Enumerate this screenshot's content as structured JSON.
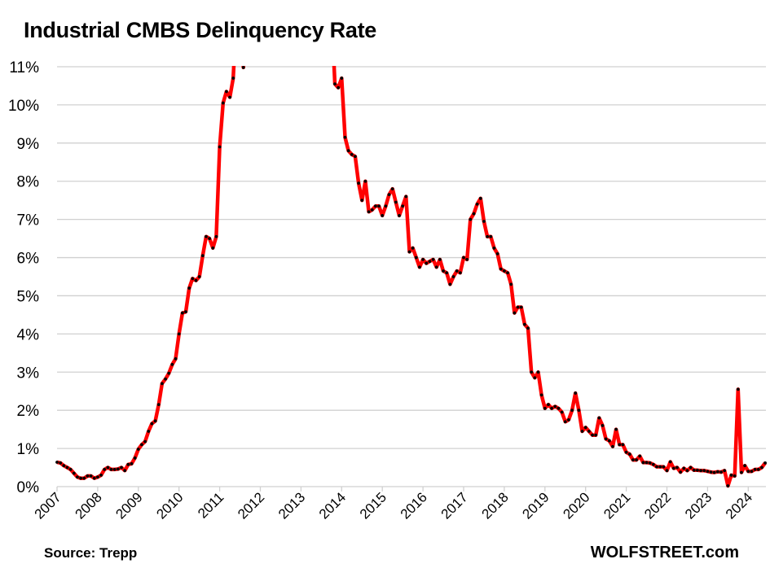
{
  "chart_data": {
    "type": "line",
    "title": "Industrial CMBS Delinquency Rate",
    "xlabel": "",
    "ylabel": "",
    "ylim": [
      0,
      11
    ],
    "xlim": [
      "2007-01",
      "2024-06"
    ],
    "y_ticks": [
      "0%",
      "1%",
      "2%",
      "3%",
      "4%",
      "5%",
      "6%",
      "7%",
      "8%",
      "9%",
      "10%",
      "11%"
    ],
    "x_ticks": [
      "2007",
      "2008",
      "2009",
      "2010",
      "2011",
      "2012",
      "2013",
      "2014",
      "2015",
      "2016",
      "2017",
      "2018",
      "2019",
      "2020",
      "2021",
      "2022",
      "2023",
      "2024"
    ],
    "grid": "horizontal",
    "frequency": "monthly",
    "unit": "%",
    "line_color": "#ff0000",
    "marker_color": "#000000",
    "note": "",
    "series": [
      {
        "values_by_year": {
          "2007": [
            0.64,
            0.62,
            0.55,
            0.5,
            0.45,
            0.35,
            0.25,
            0.22,
            0.22,
            0.28,
            0.28,
            0.22
          ],
          "2008": [
            0.25,
            0.3,
            0.45,
            0.5,
            0.45,
            0.45,
            0.46,
            0.5,
            0.42,
            0.58,
            0.6,
            0.75
          ],
          "2009": [
            0.98,
            1.1,
            1.18,
            1.45,
            1.65,
            1.72,
            2.15,
            2.7,
            2.82,
            2.97,
            3.2,
            3.35
          ],
          "2010": [
            4.0,
            4.55,
            4.58,
            5.2,
            5.45,
            5.4,
            5.5,
            6.05,
            6.55,
            6.5,
            6.25,
            6.55
          ],
          "2011": [
            8.9,
            10.05,
            10.35,
            10.2,
            10.7,
            null,
            null,
            10.98,
            null,
            null,
            null,
            null
          ],
          "2012": [
            null,
            null,
            null,
            null,
            null,
            null,
            null,
            null,
            null,
            null,
            null,
            null
          ],
          "2013": [
            null,
            null,
            null,
            null,
            null,
            null,
            null,
            null,
            null,
            null,
            10.55,
            10.45
          ],
          "2014": [
            10.7,
            9.15,
            8.8,
            8.7,
            8.65,
            7.95,
            7.5,
            8.0,
            7.2,
            7.25,
            7.35,
            7.35
          ],
          "2015": [
            7.1,
            7.35,
            7.65,
            7.8,
            7.45,
            7.1,
            7.35,
            7.6,
            6.15,
            6.25,
            6.0,
            5.75
          ],
          "2016": [
            5.95,
            5.85,
            5.9,
            5.95,
            5.75,
            5.95,
            5.65,
            5.6,
            5.3,
            5.5,
            5.65,
            5.6
          ],
          "2017": [
            6.0,
            5.95,
            7.0,
            7.15,
            7.4,
            7.55,
            6.95,
            6.55,
            6.55,
            6.25,
            6.1,
            5.7
          ],
          "2018": [
            5.65,
            5.6,
            5.3,
            4.55,
            4.7,
            4.7,
            4.25,
            4.15,
            3.0,
            2.85,
            3.0,
            2.4
          ],
          "2019": [
            2.05,
            2.15,
            2.05,
            2.1,
            2.05,
            1.95,
            1.7,
            1.75,
            2.0,
            2.45,
            2.0,
            1.45
          ],
          "2020": [
            1.55,
            1.45,
            1.35,
            1.35,
            1.8,
            1.6,
            1.25,
            1.2,
            1.05,
            1.5,
            1.1,
            1.1
          ],
          "2021": [
            0.9,
            0.85,
            0.7,
            0.7,
            0.8,
            0.63,
            0.63,
            0.62,
            0.58,
            0.52,
            0.52,
            0.52
          ],
          "2022": [
            0.42,
            0.65,
            0.48,
            0.5,
            0.38,
            0.48,
            0.42,
            0.5,
            0.43,
            0.43,
            0.42,
            0.42
          ],
          "2023": [
            0.4,
            0.38,
            0.37,
            0.39,
            0.38,
            0.42,
            0.02,
            0.3,
            0.28,
            2.55,
            0.37,
            0.55
          ],
          "2024": [
            0.4,
            0.4,
            0.45,
            0.45,
            0.5,
            0.62
          ]
        }
      }
    ]
  },
  "footer": {
    "source": "Source: Trepp",
    "brand": "WOLFSTREET.com"
  }
}
